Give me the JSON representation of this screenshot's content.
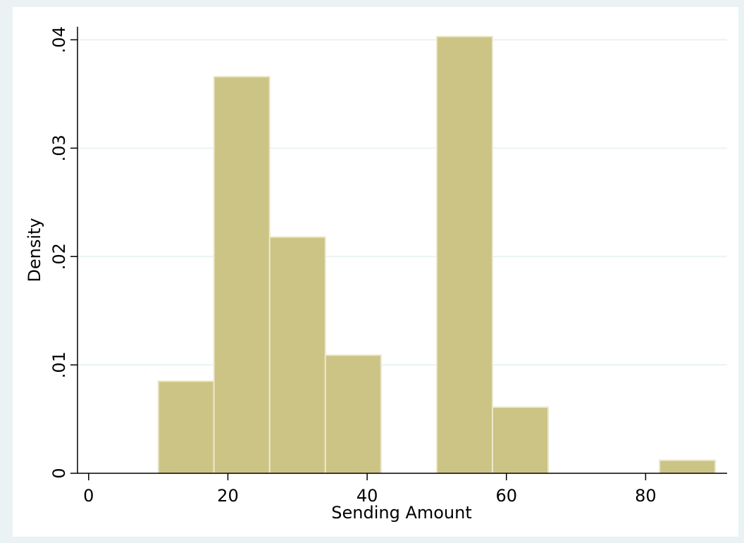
{
  "chart_data": {
    "type": "histogram",
    "xlabel": "Sending Amount",
    "ylabel": "Density",
    "bins": [
      10,
      18,
      26,
      34,
      42,
      50,
      58,
      66,
      74,
      82,
      90
    ],
    "values": [
      0.0085,
      0.0366,
      0.0218,
      0.0109,
      0,
      0.0403,
      0.0061,
      0,
      0,
      0.0012
    ],
    "color": "#ccc484",
    "xlim": [
      -1.6,
      91.7
    ],
    "ylim": [
      0,
      0.0412
    ],
    "xticks": [
      0,
      20,
      40,
      60,
      80
    ],
    "yticks": [
      0,
      {
        "value": 0.01,
        "label": ".01"
      },
      {
        "value": 0.02,
        "label": ".02"
      },
      {
        "value": 0.03,
        "label": ".03"
      },
      {
        "value": 0.04,
        "label": ".04"
      }
    ],
    "grid": true
  }
}
